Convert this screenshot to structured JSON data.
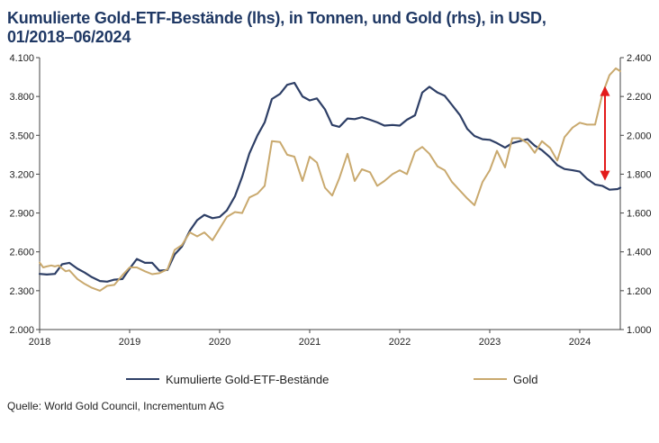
{
  "chart_data": {
    "type": "line",
    "title_line1": "Kumulierte Gold-ETF-Bestände (lhs), in Tonnen, und Gold (rhs), in USD,",
    "title_line2": "01/2018–06/2024",
    "source": "Quelle: World Gold Council, Incrementum AG",
    "x_ticks": [
      "2018",
      "2019",
      "2020",
      "2021",
      "2022",
      "2023",
      "2024"
    ],
    "x_range": [
      2018.0,
      2024.45
    ],
    "y_left": {
      "min": 2000,
      "max": 4100,
      "ticks": [
        "2.000",
        "2.300",
        "2.600",
        "2.900",
        "3.200",
        "3.500",
        "3.800",
        "4.100"
      ]
    },
    "y_right": {
      "min": 1000,
      "max": 2400,
      "ticks": [
        "1.000",
        "1.200",
        "1.400",
        "1.600",
        "1.800",
        "2.000",
        "2.200",
        "2.400"
      ]
    },
    "series": [
      {
        "name": "Kumulierte Gold-ETF-Bestände",
        "axis": "left",
        "color": "#2e3f66",
        "points": [
          [
            2018.0,
            2430
          ],
          [
            2018.08,
            2425
          ],
          [
            2018.17,
            2430
          ],
          [
            2018.25,
            2505
          ],
          [
            2018.33,
            2515
          ],
          [
            2018.42,
            2470
          ],
          [
            2018.5,
            2440
          ],
          [
            2018.58,
            2405
          ],
          [
            2018.67,
            2375
          ],
          [
            2018.75,
            2370
          ],
          [
            2018.83,
            2385
          ],
          [
            2018.92,
            2390
          ],
          [
            2019.0,
            2470
          ],
          [
            2019.08,
            2545
          ],
          [
            2019.17,
            2515
          ],
          [
            2019.25,
            2515
          ],
          [
            2019.33,
            2455
          ],
          [
            2019.42,
            2460
          ],
          [
            2019.5,
            2580
          ],
          [
            2019.58,
            2640
          ],
          [
            2019.67,
            2765
          ],
          [
            2019.75,
            2845
          ],
          [
            2019.83,
            2885
          ],
          [
            2019.92,
            2860
          ],
          [
            2020.0,
            2870
          ],
          [
            2020.08,
            2920
          ],
          [
            2020.17,
            3030
          ],
          [
            2020.25,
            3180
          ],
          [
            2020.33,
            3360
          ],
          [
            2020.42,
            3500
          ],
          [
            2020.5,
            3600
          ],
          [
            2020.58,
            3780
          ],
          [
            2020.67,
            3820
          ],
          [
            2020.75,
            3890
          ],
          [
            2020.83,
            3905
          ],
          [
            2020.92,
            3800
          ],
          [
            2021.0,
            3770
          ],
          [
            2021.08,
            3785
          ],
          [
            2021.17,
            3700
          ],
          [
            2021.25,
            3580
          ],
          [
            2021.33,
            3565
          ],
          [
            2021.42,
            3630
          ],
          [
            2021.5,
            3625
          ],
          [
            2021.58,
            3640
          ],
          [
            2021.67,
            3620
          ],
          [
            2021.75,
            3600
          ],
          [
            2021.83,
            3575
          ],
          [
            2021.92,
            3580
          ],
          [
            2022.0,
            3575
          ],
          [
            2022.08,
            3620
          ],
          [
            2022.17,
            3655
          ],
          [
            2022.25,
            3830
          ],
          [
            2022.33,
            3875
          ],
          [
            2022.42,
            3830
          ],
          [
            2022.5,
            3805
          ],
          [
            2022.58,
            3735
          ],
          [
            2022.67,
            3655
          ],
          [
            2022.75,
            3550
          ],
          [
            2022.83,
            3495
          ],
          [
            2022.92,
            3470
          ],
          [
            2023.0,
            3465
          ],
          [
            2023.08,
            3440
          ],
          [
            2023.17,
            3405
          ],
          [
            2023.25,
            3440
          ],
          [
            2023.33,
            3455
          ],
          [
            2023.42,
            3470
          ],
          [
            2023.5,
            3420
          ],
          [
            2023.58,
            3385
          ],
          [
            2023.67,
            3330
          ],
          [
            2023.75,
            3270
          ],
          [
            2023.83,
            3240
          ],
          [
            2023.92,
            3230
          ],
          [
            2024.0,
            3220
          ],
          [
            2024.08,
            3165
          ],
          [
            2024.17,
            3120
          ],
          [
            2024.25,
            3110
          ],
          [
            2024.33,
            3080
          ],
          [
            2024.42,
            3085
          ],
          [
            2024.45,
            3095
          ]
        ]
      },
      {
        "name": "Gold",
        "axis": "right",
        "color": "#c9a96e",
        "points": [
          [
            2018.0,
            1345
          ],
          [
            2018.04,
            1320
          ],
          [
            2018.08,
            1325
          ],
          [
            2018.13,
            1330
          ],
          [
            2018.17,
            1325
          ],
          [
            2018.21,
            1330
          ],
          [
            2018.25,
            1315
          ],
          [
            2018.29,
            1300
          ],
          [
            2018.33,
            1305
          ],
          [
            2018.42,
            1260
          ],
          [
            2018.5,
            1235
          ],
          [
            2018.58,
            1215
          ],
          [
            2018.67,
            1200
          ],
          [
            2018.75,
            1225
          ],
          [
            2018.83,
            1230
          ],
          [
            2018.92,
            1280
          ],
          [
            2019.0,
            1320
          ],
          [
            2019.08,
            1320
          ],
          [
            2019.17,
            1300
          ],
          [
            2019.25,
            1285
          ],
          [
            2019.33,
            1290
          ],
          [
            2019.42,
            1310
          ],
          [
            2019.5,
            1410
          ],
          [
            2019.58,
            1435
          ],
          [
            2019.67,
            1500
          ],
          [
            2019.75,
            1480
          ],
          [
            2019.83,
            1500
          ],
          [
            2019.92,
            1460
          ],
          [
            2020.0,
            1520
          ],
          [
            2020.08,
            1580
          ],
          [
            2020.17,
            1605
          ],
          [
            2020.25,
            1600
          ],
          [
            2020.33,
            1680
          ],
          [
            2020.42,
            1700
          ],
          [
            2020.5,
            1740
          ],
          [
            2020.58,
            1970
          ],
          [
            2020.67,
            1965
          ],
          [
            2020.75,
            1900
          ],
          [
            2020.83,
            1890
          ],
          [
            2020.92,
            1765
          ],
          [
            2021.0,
            1890
          ],
          [
            2021.08,
            1860
          ],
          [
            2021.17,
            1730
          ],
          [
            2021.25,
            1690
          ],
          [
            2021.33,
            1780
          ],
          [
            2021.42,
            1905
          ],
          [
            2021.5,
            1765
          ],
          [
            2021.58,
            1825
          ],
          [
            2021.67,
            1810
          ],
          [
            2021.75,
            1740
          ],
          [
            2021.83,
            1765
          ],
          [
            2021.92,
            1800
          ],
          [
            2022.0,
            1820
          ],
          [
            2022.08,
            1800
          ],
          [
            2022.17,
            1915
          ],
          [
            2022.25,
            1940
          ],
          [
            2022.33,
            1905
          ],
          [
            2022.42,
            1840
          ],
          [
            2022.5,
            1820
          ],
          [
            2022.58,
            1760
          ],
          [
            2022.67,
            1715
          ],
          [
            2022.75,
            1675
          ],
          [
            2022.83,
            1640
          ],
          [
            2022.92,
            1760
          ],
          [
            2023.0,
            1820
          ],
          [
            2023.08,
            1920
          ],
          [
            2023.17,
            1835
          ],
          [
            2023.25,
            1985
          ],
          [
            2023.33,
            1985
          ],
          [
            2023.42,
            1960
          ],
          [
            2023.5,
            1910
          ],
          [
            2023.58,
            1970
          ],
          [
            2023.67,
            1935
          ],
          [
            2023.75,
            1870
          ],
          [
            2023.83,
            1990
          ],
          [
            2023.92,
            2040
          ],
          [
            2024.0,
            2065
          ],
          [
            2024.08,
            2055
          ],
          [
            2024.17,
            2055
          ],
          [
            2024.25,
            2210
          ],
          [
            2024.33,
            2310
          ],
          [
            2024.4,
            2345
          ],
          [
            2024.45,
            2330
          ]
        ]
      }
    ],
    "arrow": {
      "color": "#e31b1b",
      "y_left_from": 3880,
      "y_left_to": 3150,
      "x": 2024.28
    },
    "legend": {
      "placement": "bottom"
    }
  }
}
